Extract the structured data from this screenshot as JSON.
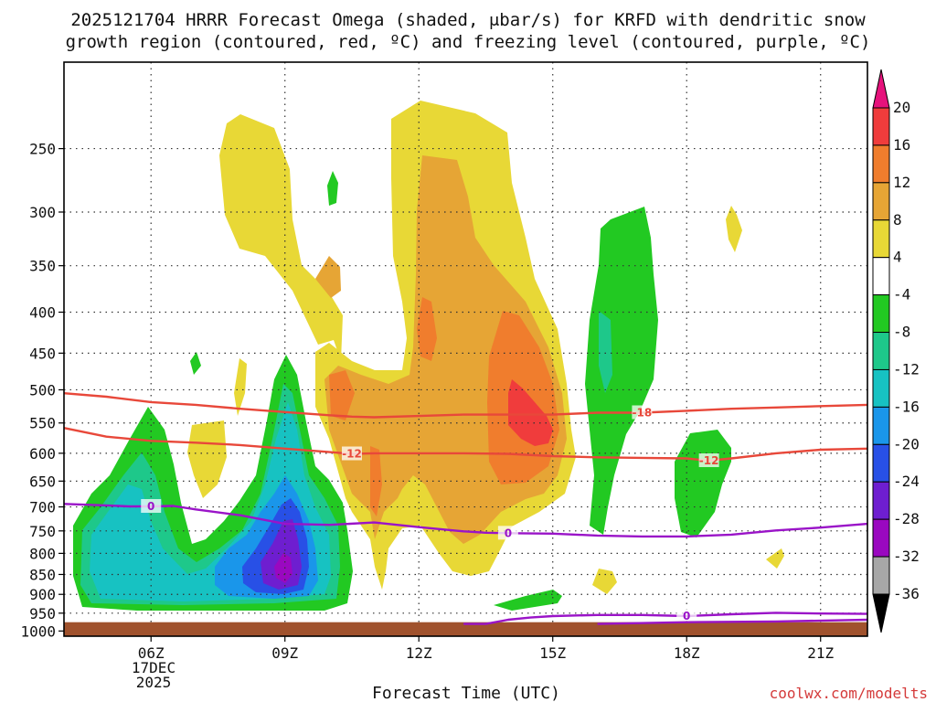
{
  "chart_data": {
    "type": "contour-cross-section",
    "title_line1": "2025121704 HRRR Forecast Omega (shaded, μbar/s) for KRFD with dendritic snow",
    "title_line2": "growth region (contoured, red, ºC) and freezing level (contoured, purple, ºC)",
    "xlabel": "Forecast Time (UTC)",
    "ylabel": "",
    "credit": "coolwx.com/modelts",
    "x_ticks": [
      {
        "hour": 6,
        "label": "06Z"
      },
      {
        "hour": 9,
        "label": "09Z"
      },
      {
        "hour": 12,
        "label": "12Z"
      },
      {
        "hour": 15,
        "label": "15Z"
      },
      {
        "hour": 18,
        "label": "18Z"
      },
      {
        "hour": 21,
        "label": "21Z"
      }
    ],
    "date_label_line1": "17DEC",
    "date_label_line2": "2025",
    "x_range_hours": [
      4.05,
      22.05
    ],
    "y_ticks": [
      250,
      300,
      350,
      400,
      450,
      500,
      550,
      600,
      650,
      700,
      750,
      800,
      850,
      900,
      950,
      1000
    ],
    "y_range_hpa": [
      195,
      1015
    ],
    "y_scale": "log-pressure",
    "colorbar": {
      "levels": [
        20,
        16,
        12,
        8,
        4,
        -4,
        -8,
        -12,
        -16,
        -20,
        -24,
        -28,
        -32,
        -36
      ],
      "colors": [
        "#f03c3c",
        "#f07d2d",
        "#e6a535",
        "#e8d836",
        "#ffffff",
        "#22c922",
        "#1ec88a",
        "#17c2c2",
        "#1a96ea",
        "#2850e6",
        "#6e1ed0",
        "#9a08c0",
        "#a7a7a7"
      ],
      "top_arrow_color": "#e6127c",
      "bottom_arrow_color": "#000000"
    },
    "contours": {
      "dendritic": [
        {
          "label": "-18",
          "color": "#e8483a",
          "points": [
            [
              4.05,
              505
            ],
            [
              5,
              510
            ],
            [
              6,
              518
            ],
            [
              7,
              522
            ],
            [
              8,
              528
            ],
            [
              9,
              533
            ],
            [
              10,
              538
            ],
            [
              10.5,
              540
            ],
            [
              11,
              541
            ],
            [
              12,
              539
            ],
            [
              13,
              537
            ],
            [
              14,
              537
            ],
            [
              15,
              537
            ],
            [
              16,
              534
            ],
            [
              17,
              534
            ],
            [
              18,
              531
            ],
            [
              19,
              528
            ],
            [
              20,
              526
            ],
            [
              21,
              524
            ],
            [
              22.05,
              522
            ]
          ]
        },
        {
          "label": "-12",
          "color": "#e8483a",
          "points": [
            [
              4.05,
              558
            ],
            [
              5,
              572
            ],
            [
              6,
              579
            ],
            [
              7,
              582
            ],
            [
              8,
              586
            ],
            [
              9,
              592
            ],
            [
              10,
              598
            ],
            [
              10.5,
              601
            ],
            [
              11,
              600
            ],
            [
              12,
              600
            ],
            [
              13,
              600
            ],
            [
              14,
              601
            ],
            [
              15,
              605
            ],
            [
              16,
              607
            ],
            [
              17,
              608
            ],
            [
              18,
              609
            ],
            [
              18.5,
              613
            ],
            [
              19,
              609
            ],
            [
              20,
              600
            ],
            [
              21,
              594
            ],
            [
              22.05,
              592
            ]
          ]
        }
      ],
      "freezing": [
        {
          "label": "0",
          "color": "#9a14c8",
          "points": [
            [
              4.05,
              694
            ],
            [
              5,
              697
            ],
            [
              5.5,
              699
            ],
            [
              6,
              699
            ],
            [
              6.5,
              698
            ],
            [
              7,
              705
            ],
            [
              8,
              717
            ],
            [
              9,
              735
            ],
            [
              10,
              737
            ],
            [
              11,
              732
            ],
            [
              12,
              742
            ],
            [
              13,
              751
            ],
            [
              13.5,
              754
            ],
            [
              14,
              755
            ],
            [
              15,
              756
            ],
            [
              16,
              760
            ],
            [
              17,
              762
            ],
            [
              18,
              762
            ],
            [
              19,
              758
            ],
            [
              20,
              749
            ],
            [
              21,
              743
            ],
            [
              22.05,
              735
            ]
          ]
        },
        {
          "label": "0",
          "color": "#9a14c8",
          "points": [
            [
              13,
              980
            ],
            [
              13.5,
              980
            ],
            [
              14,
              968
            ],
            [
              14.5,
              962
            ],
            [
              15,
              958
            ],
            [
              16,
              955
            ],
            [
              17,
              955
            ],
            [
              18,
              958
            ],
            [
              19,
              953
            ],
            [
              20,
              949
            ],
            [
              21,
              951
            ],
            [
              22.05,
              952
            ]
          ]
        },
        {
          "label": "",
          "color": "#9a14c8",
          "points": [
            [
              16,
              980
            ],
            [
              18,
              975
            ],
            [
              20,
              973
            ],
            [
              22.05,
              968
            ]
          ]
        }
      ]
    },
    "ground_pressure_hpa": 975
  }
}
